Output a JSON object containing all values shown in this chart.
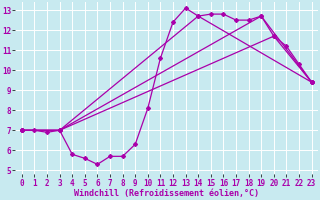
{
  "background_color": "#c8eaf0",
  "grid_color": "#ffffff",
  "line_color": "#aa00aa",
  "marker": "D",
  "markersize": 2,
  "linewidth": 0.9,
  "xlabel": "Windchill (Refroidissement éolien,°C)",
  "xlabel_fontsize": 6.0,
  "tick_fontsize": 5.5,
  "xlim": [
    -0.5,
    23.5
  ],
  "ylim": [
    4.8,
    13.4
  ],
  "yticks": [
    5,
    6,
    7,
    8,
    9,
    10,
    11,
    12,
    13
  ],
  "xticks": [
    0,
    1,
    2,
    3,
    4,
    5,
    6,
    7,
    8,
    9,
    10,
    11,
    12,
    13,
    14,
    15,
    16,
    17,
    18,
    19,
    20,
    21,
    22,
    23
  ],
  "series": [
    [
      7.0,
      7.0,
      6.9,
      7.0,
      5.8,
      5.6,
      5.3,
      5.7,
      5.7,
      6.3,
      8.1,
      10.6,
      12.4,
      13.1,
      12.7,
      12.8,
      12.8,
      12.5,
      12.5,
      12.7,
      11.7,
      11.2,
      10.3,
      9.4
    ],
    [
      7.0,
      null,
      null,
      7.0,
      null,
      null,
      null,
      null,
      null,
      null,
      null,
      null,
      null,
      null,
      null,
      null,
      null,
      null,
      null,
      12.7,
      null,
      null,
      null,
      9.4
    ],
    [
      7.0,
      null,
      null,
      7.0,
      null,
      null,
      null,
      null,
      null,
      null,
      null,
      null,
      null,
      null,
      12.7,
      null,
      null,
      null,
      null,
      null,
      null,
      null,
      null,
      9.4
    ],
    [
      7.0,
      null,
      null,
      7.0,
      null,
      null,
      null,
      null,
      null,
      null,
      null,
      null,
      null,
      null,
      null,
      null,
      null,
      null,
      null,
      null,
      11.7,
      null,
      null,
      9.4
    ]
  ]
}
